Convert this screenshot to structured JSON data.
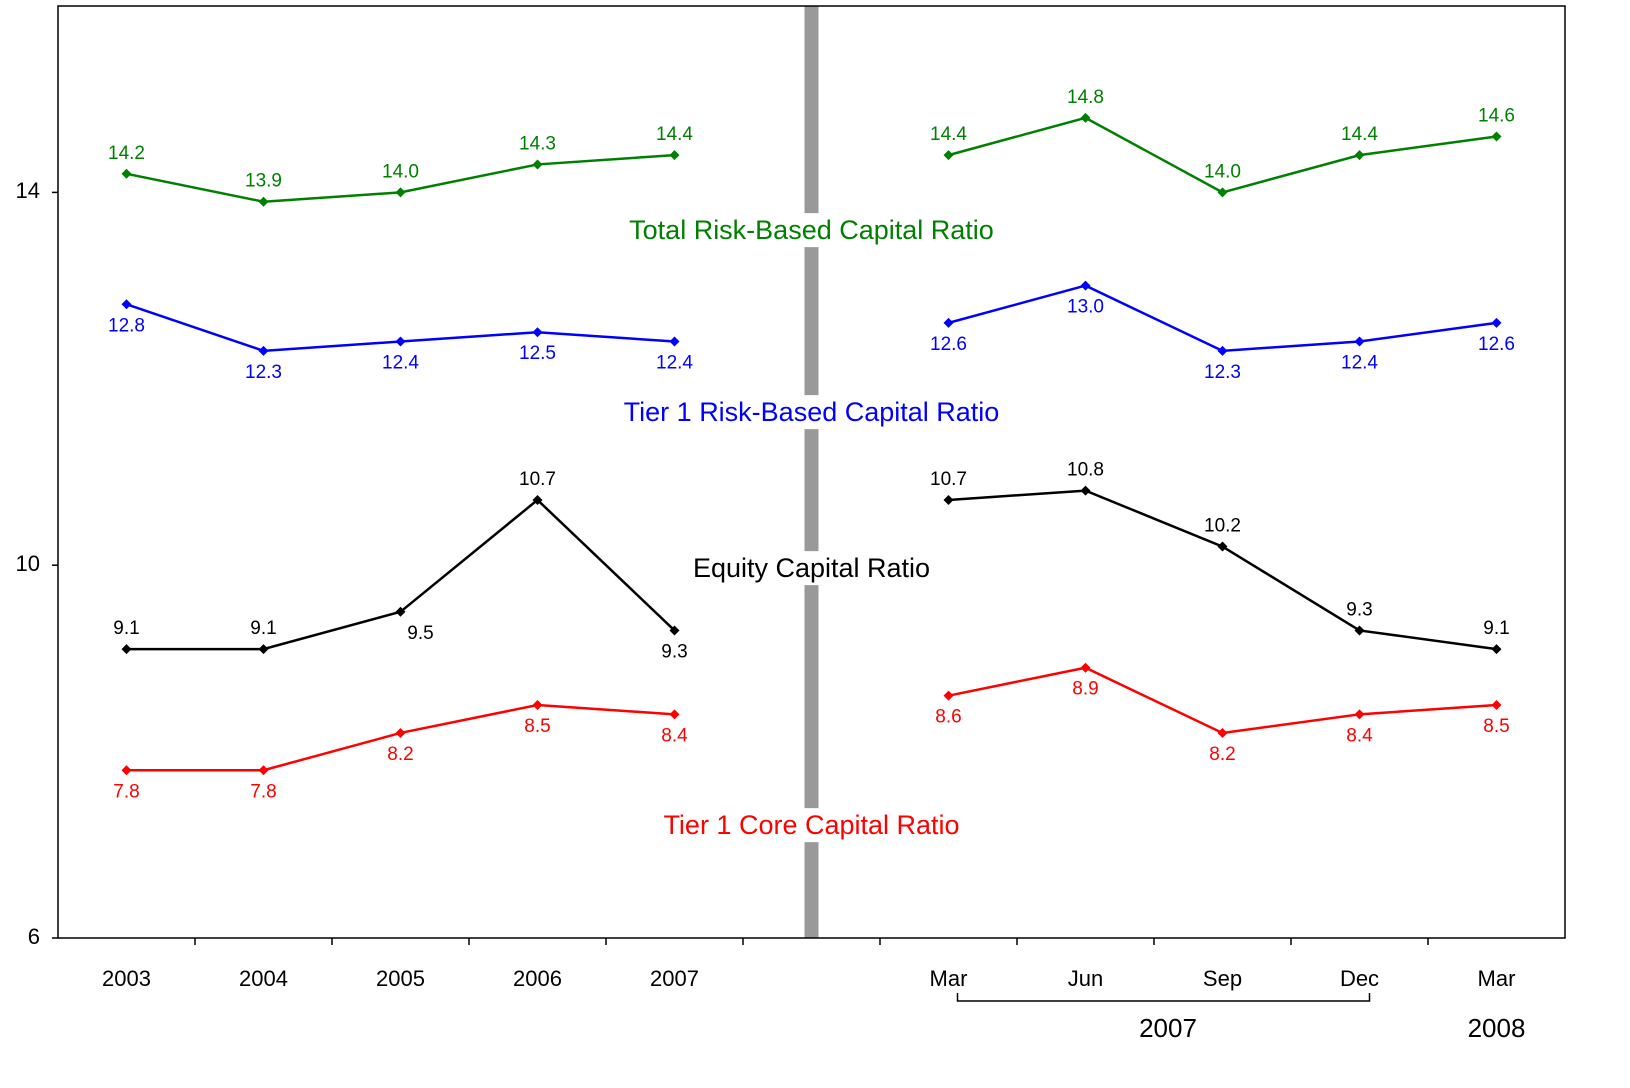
{
  "chart_data": {
    "type": "line",
    "categories": [
      "2003",
      "2004",
      "2005",
      "2006",
      "2007",
      null,
      "Mar",
      "Jun",
      "Sep",
      "Dec",
      "Mar"
    ],
    "x_groups": [
      {
        "label": "2007"
      },
      {
        "label": "2008"
      }
    ],
    "ylim": [
      6,
      16
    ],
    "yticks": [
      6,
      10,
      14
    ],
    "series": [
      {
        "name": "Total Risk-Based Capital Ratio",
        "color": "#008000",
        "values": [
          14.2,
          13.9,
          14.0,
          14.3,
          14.4,
          null,
          14.4,
          14.8,
          14.0,
          14.4,
          14.6
        ],
        "value_labels": [
          "14.2",
          "13.9",
          "14.0",
          "14.3",
          "14.4",
          null,
          "14.4",
          "14.8",
          "14.0",
          "14.4",
          "14.6"
        ]
      },
      {
        "name": "Tier 1 Risk-Based Capital Ratio",
        "color": "#0000ff",
        "values": [
          12.8,
          12.3,
          12.4,
          12.5,
          12.4,
          null,
          12.6,
          13.0,
          12.3,
          12.4,
          12.6
        ],
        "value_labels": [
          "12.8",
          "12.3",
          "12.4",
          "12.5",
          "12.4",
          null,
          "12.6",
          "13.0",
          "12.3",
          "12.4",
          "12.6"
        ]
      },
      {
        "name": "Equity Capital Ratio",
        "color": "#000000",
        "values": [
          9.1,
          9.1,
          9.5,
          10.7,
          9.3,
          null,
          10.7,
          10.8,
          10.2,
          9.3,
          9.1
        ],
        "value_labels": [
          "9.1",
          "9.1",
          "9.5",
          "10.7",
          "9.3",
          null,
          "10.7",
          "10.8",
          "10.2",
          "9.3",
          "9.1"
        ]
      },
      {
        "name": "Tier 1 Core Capital Ratio",
        "color": "#ff0000",
        "values": [
          7.8,
          7.8,
          8.2,
          8.5,
          8.4,
          null,
          8.6,
          8.9,
          8.2,
          8.4,
          8.5
        ],
        "value_labels": [
          "7.8",
          "7.8",
          "8.2",
          "8.5",
          "8.4",
          null,
          "8.6",
          "8.9",
          "8.2",
          "8.4",
          "8.5"
        ]
      }
    ]
  }
}
